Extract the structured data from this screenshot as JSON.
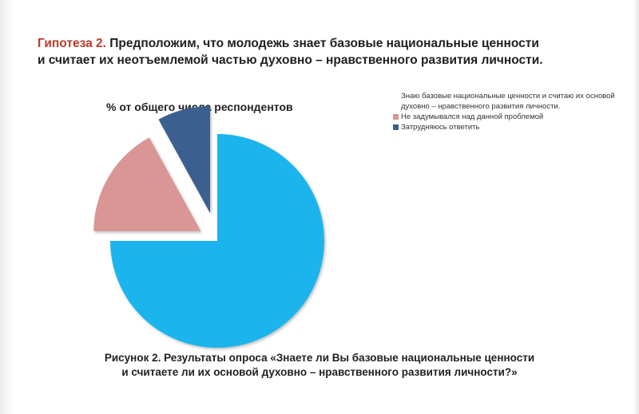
{
  "heading": {
    "accent": "Гипотеза 2.",
    "line1": " Предположим, что  молодежь знает базовые национальные ценности",
    "line2": "и считает их неотъемлемой частью духовно – нравственного развития личности."
  },
  "chart_data": {
    "type": "pie",
    "title": "% от общего числа респондентов",
    "legend_position": "top-right",
    "labels": [
      "Знаю базовые национальные ценности и считаю их основой духовно – нравственного развития личности.",
      "Не задумывался над данной проблемой",
      "Затрудняюсь ответить"
    ],
    "values": [
      75,
      17,
      8
    ],
    "colors": [
      "#1fb4ec",
      "#d99694",
      "#3a5f8f"
    ],
    "exploded": true
  },
  "legend": {
    "items": [
      {
        "text": "Знаю базовые национальные ценности и считаю их основой духовно – нравственного развития личности.",
        "color": "#1fb4ec",
        "swatch": false
      },
      {
        "text": "Не задумывался над данной проблемой",
        "color": "#d99694",
        "swatch": true
      },
      {
        "text": "Затрудняюсь ответить",
        "color": "#3a5f8f",
        "swatch": true
      }
    ]
  },
  "caption": {
    "line1": "Рисунок 2. Результаты опроса «Знаете ли Вы базовые национальные ценности",
    "line2": "и считаете ли их основой духовно – нравственного развития личности?»"
  }
}
